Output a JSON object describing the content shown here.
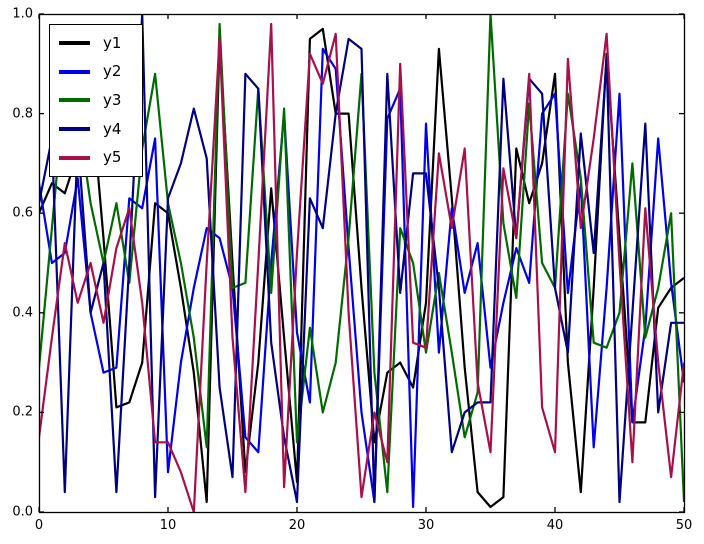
{
  "figure": {
    "background": "#ffffff",
    "frame_color": "#000000"
  },
  "chart_data": {
    "type": "line",
    "title": "",
    "xlabel": "",
    "ylabel": "",
    "xlim": [
      0,
      50
    ],
    "ylim": [
      0.0,
      1.0
    ],
    "grid": false,
    "legend_position": "upper left",
    "x_ticks": [
      "0",
      "10",
      "20",
      "30",
      "40",
      "50"
    ],
    "y_ticks": [
      "0.0",
      "0.2",
      "0.4",
      "0.6",
      "0.8",
      "1.0"
    ],
    "x": [
      0,
      1,
      2,
      3,
      4,
      5,
      6,
      7,
      8,
      9,
      10,
      11,
      12,
      13,
      14,
      15,
      16,
      17,
      18,
      19,
      20,
      21,
      22,
      23,
      24,
      25,
      26,
      27,
      28,
      29,
      30,
      31,
      32,
      33,
      34,
      35,
      36,
      37,
      38,
      39,
      40,
      41,
      42,
      43,
      44,
      45,
      46,
      47,
      48,
      49,
      50
    ],
    "series": [
      {
        "name": "y1",
        "color": "#000000",
        "values": [
          0.6,
          0.66,
          0.64,
          0.72,
          0.85,
          0.55,
          0.21,
          0.22,
          0.3,
          0.62,
          0.6,
          0.45,
          0.28,
          0.02,
          0.95,
          0.5,
          0.08,
          0.3,
          0.65,
          0.35,
          0.06,
          0.95,
          0.97,
          0.8,
          0.8,
          0.45,
          0.14,
          0.28,
          0.3,
          0.25,
          0.42,
          0.93,
          0.63,
          0.29,
          0.04,
          0.01,
          0.03,
          0.73,
          0.62,
          0.7,
          0.88,
          0.3,
          0.04,
          0.45,
          0.92,
          0.55,
          0.18,
          0.18,
          0.41,
          0.45,
          0.47
        ]
      },
      {
        "name": "y2",
        "color": "#0000ee",
        "values": [
          0.66,
          0.5,
          0.52,
          0.67,
          0.4,
          0.28,
          0.29,
          0.63,
          0.61,
          0.75,
          0.08,
          0.3,
          0.45,
          0.57,
          0.55,
          0.45,
          0.15,
          0.12,
          0.5,
          0.8,
          0.36,
          0.22,
          0.93,
          0.89,
          0.53,
          0.2,
          0.02,
          0.79,
          0.85,
          0.01,
          0.78,
          0.32,
          0.61,
          0.44,
          0.54,
          0.29,
          0.42,
          0.53,
          0.46,
          0.8,
          0.84,
          0.44,
          0.66,
          0.13,
          0.45,
          0.84,
          0.18,
          0.37,
          0.75,
          0.46,
          0.26
        ]
      },
      {
        "name": "y3",
        "color": "#006b00",
        "values": [
          0.29,
          0.57,
          0.85,
          0.8,
          0.62,
          0.5,
          0.62,
          0.46,
          0.73,
          0.88,
          0.62,
          0.5,
          0.35,
          0.13,
          0.98,
          0.45,
          0.46,
          0.85,
          0.44,
          0.81,
          0.14,
          0.37,
          0.2,
          0.3,
          0.55,
          0.88,
          0.28,
          0.04,
          0.57,
          0.5,
          0.32,
          0.48,
          0.32,
          0.15,
          0.24,
          1.0,
          0.58,
          0.43,
          0.82,
          0.5,
          0.45,
          0.84,
          0.67,
          0.34,
          0.33,
          0.4,
          0.7,
          0.35,
          0.45,
          0.6,
          0.02
        ]
      },
      {
        "name": "y4",
        "color": "#000080",
        "values": [
          0.62,
          0.75,
          0.04,
          0.75,
          0.4,
          0.5,
          0.04,
          0.5,
          1.0,
          0.03,
          0.63,
          0.7,
          0.81,
          0.71,
          0.25,
          0.07,
          0.88,
          0.85,
          0.34,
          0.15,
          0.02,
          0.63,
          0.57,
          0.8,
          0.95,
          0.93,
          0.02,
          0.88,
          0.44,
          0.68,
          0.68,
          0.45,
          0.12,
          0.2,
          0.22,
          0.22,
          0.87,
          0.55,
          0.87,
          0.84,
          0.45,
          0.32,
          0.76,
          0.52,
          0.91,
          0.02,
          0.4,
          0.78,
          0.2,
          0.38,
          0.38
        ]
      },
      {
        "name": "y5",
        "color": "#a8104c",
        "values": [
          0.15,
          0.35,
          0.54,
          0.42,
          0.5,
          0.38,
          0.53,
          0.61,
          0.42,
          0.14,
          0.14,
          0.08,
          0.0,
          0.5,
          0.95,
          0.35,
          0.04,
          0.5,
          0.98,
          0.05,
          0.52,
          0.92,
          0.86,
          0.96,
          0.4,
          0.03,
          0.2,
          0.1,
          0.9,
          0.34,
          0.33,
          0.72,
          0.57,
          0.73,
          0.26,
          0.12,
          0.69,
          0.55,
          0.88,
          0.21,
          0.12,
          0.91,
          0.57,
          0.75,
          0.96,
          0.5,
          0.1,
          0.61,
          0.3,
          0.07,
          0.3
        ]
      }
    ]
  }
}
